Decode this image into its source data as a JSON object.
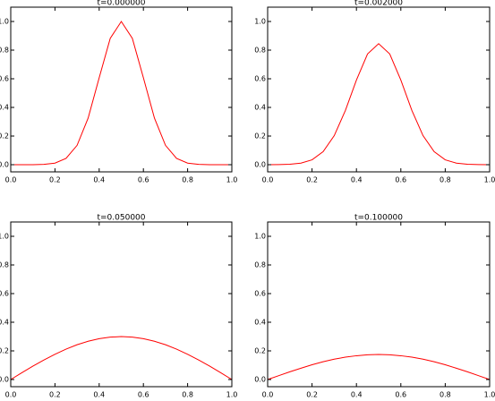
{
  "chart_data": [
    {
      "type": "line",
      "title": "t=0.000000",
      "x": [
        0,
        0.05,
        0.1,
        0.15,
        0.2,
        0.25,
        0.3,
        0.35,
        0.4,
        0.45,
        0.5,
        0.55,
        0.6,
        0.65,
        0.7,
        0.75,
        0.8,
        0.85,
        0.9,
        0.95,
        1
      ],
      "series": [
        {
          "color": "#ff0000",
          "values": [
            0.0,
            0.0,
            0.0,
            0.002,
            0.011,
            0.044,
            0.135,
            0.325,
            0.607,
            0.882,
            1.0,
            0.882,
            0.607,
            0.325,
            0.135,
            0.044,
            0.011,
            0.002,
            0.0,
            0.0,
            0.0
          ]
        }
      ],
      "xlim": [
        0,
        1
      ],
      "ylim": [
        -0.05,
        1.1
      ],
      "xticks": [
        {
          "value": 0,
          "label": "0.0"
        },
        {
          "value": 0.2,
          "label": "0.2"
        },
        {
          "value": 0.4,
          "label": "0.4"
        },
        {
          "value": 0.6,
          "label": "0.6"
        },
        {
          "value": 0.8,
          "label": "0.8"
        },
        {
          "value": 1,
          "label": "1.0"
        }
      ],
      "yticks": [
        {
          "value": 0,
          "label": "0.0"
        },
        {
          "value": 0.2,
          "label": "0.2"
        },
        {
          "value": 0.4,
          "label": "0.4"
        },
        {
          "value": 0.6,
          "label": "0.6"
        },
        {
          "value": 0.8,
          "label": "0.8"
        },
        {
          "value": 1,
          "label": "1.0"
        }
      ]
    },
    {
      "type": "line",
      "title": "t=0.002000",
      "x": [
        0,
        0.05,
        0.1,
        0.15,
        0.2,
        0.25,
        0.3,
        0.35,
        0.4,
        0.45,
        0.5,
        0.55,
        0.6,
        0.65,
        0.7,
        0.75,
        0.8,
        0.85,
        0.9,
        0.95,
        1
      ],
      "series": [
        {
          "color": "#ff0000",
          "values": [
            0.0,
            0.001,
            0.003,
            0.011,
            0.034,
            0.091,
            0.203,
            0.378,
            0.591,
            0.773,
            0.845,
            0.773,
            0.591,
            0.378,
            0.203,
            0.091,
            0.034,
            0.011,
            0.003,
            0.001,
            0.0
          ]
        }
      ],
      "xlim": [
        0,
        1
      ],
      "ylim": [
        -0.05,
        1.1
      ],
      "xticks": [
        {
          "value": 0,
          "label": "0.0"
        },
        {
          "value": 0.2,
          "label": "0.2"
        },
        {
          "value": 0.4,
          "label": "0.4"
        },
        {
          "value": 0.6,
          "label": "0.6"
        },
        {
          "value": 0.8,
          "label": "0.8"
        },
        {
          "value": 1,
          "label": "1.0"
        }
      ],
      "yticks": [
        {
          "value": 0,
          "label": "0.0"
        },
        {
          "value": 0.2,
          "label": "0.2"
        },
        {
          "value": 0.4,
          "label": "0.4"
        },
        {
          "value": 0.6,
          "label": "0.6"
        },
        {
          "value": 0.8,
          "label": "0.8"
        },
        {
          "value": 1,
          "label": "1.0"
        }
      ]
    },
    {
      "type": "line",
      "title": "t=0.050000",
      "x": [
        0,
        0.05,
        0.1,
        0.15,
        0.2,
        0.25,
        0.3,
        0.35,
        0.4,
        0.45,
        0.5,
        0.55,
        0.6,
        0.65,
        0.7,
        0.75,
        0.8,
        0.85,
        0.9,
        0.95,
        1
      ],
      "series": [
        {
          "color": "#ff0000",
          "values": [
            0,
            0.047,
            0.093,
            0.136,
            0.176,
            0.212,
            0.243,
            0.267,
            0.285,
            0.296,
            0.3,
            0.296,
            0.285,
            0.267,
            0.243,
            0.212,
            0.176,
            0.136,
            0.093,
            0.047,
            0
          ]
        }
      ],
      "xlim": [
        0,
        1
      ],
      "ylim": [
        -0.05,
        1.1
      ],
      "xticks": [
        {
          "value": 0,
          "label": "0.0"
        },
        {
          "value": 0.2,
          "label": "0.2"
        },
        {
          "value": 0.4,
          "label": "0.4"
        },
        {
          "value": 0.6,
          "label": "0.6"
        },
        {
          "value": 0.8,
          "label": "0.8"
        },
        {
          "value": 1,
          "label": "1.0"
        }
      ],
      "yticks": [
        {
          "value": 0,
          "label": "0.0"
        },
        {
          "value": 0.2,
          "label": "0.2"
        },
        {
          "value": 0.4,
          "label": "0.4"
        },
        {
          "value": 0.6,
          "label": "0.6"
        },
        {
          "value": 0.8,
          "label": "0.8"
        },
        {
          "value": 1,
          "label": "1.0"
        }
      ]
    },
    {
      "type": "line",
      "title": "t=0.100000",
      "x": [
        0,
        0.05,
        0.1,
        0.15,
        0.2,
        0.25,
        0.3,
        0.35,
        0.4,
        0.45,
        0.5,
        0.55,
        0.6,
        0.65,
        0.7,
        0.75,
        0.8,
        0.85,
        0.9,
        0.95,
        1
      ],
      "series": [
        {
          "color": "#ff0000",
          "values": [
            0,
            0.027,
            0.054,
            0.079,
            0.103,
            0.124,
            0.142,
            0.156,
            0.166,
            0.173,
            0.175,
            0.173,
            0.166,
            0.156,
            0.142,
            0.124,
            0.103,
            0.079,
            0.054,
            0.027,
            0
          ]
        }
      ],
      "xlim": [
        0,
        1
      ],
      "ylim": [
        -0.05,
        1.1
      ],
      "xticks": [
        {
          "value": 0,
          "label": "0.0"
        },
        {
          "value": 0.2,
          "label": "0.2"
        },
        {
          "value": 0.4,
          "label": "0.4"
        },
        {
          "value": 0.6,
          "label": "0.6"
        },
        {
          "value": 0.8,
          "label": "0.8"
        },
        {
          "value": 1,
          "label": "1.0"
        }
      ],
      "yticks": [
        {
          "value": 0,
          "label": "0.0"
        },
        {
          "value": 0.2,
          "label": "0.2"
        },
        {
          "value": 0.4,
          "label": "0.4"
        },
        {
          "value": 0.6,
          "label": "0.6"
        },
        {
          "value": 0.8,
          "label": "0.8"
        },
        {
          "value": 1,
          "label": "1.0"
        }
      ]
    }
  ]
}
